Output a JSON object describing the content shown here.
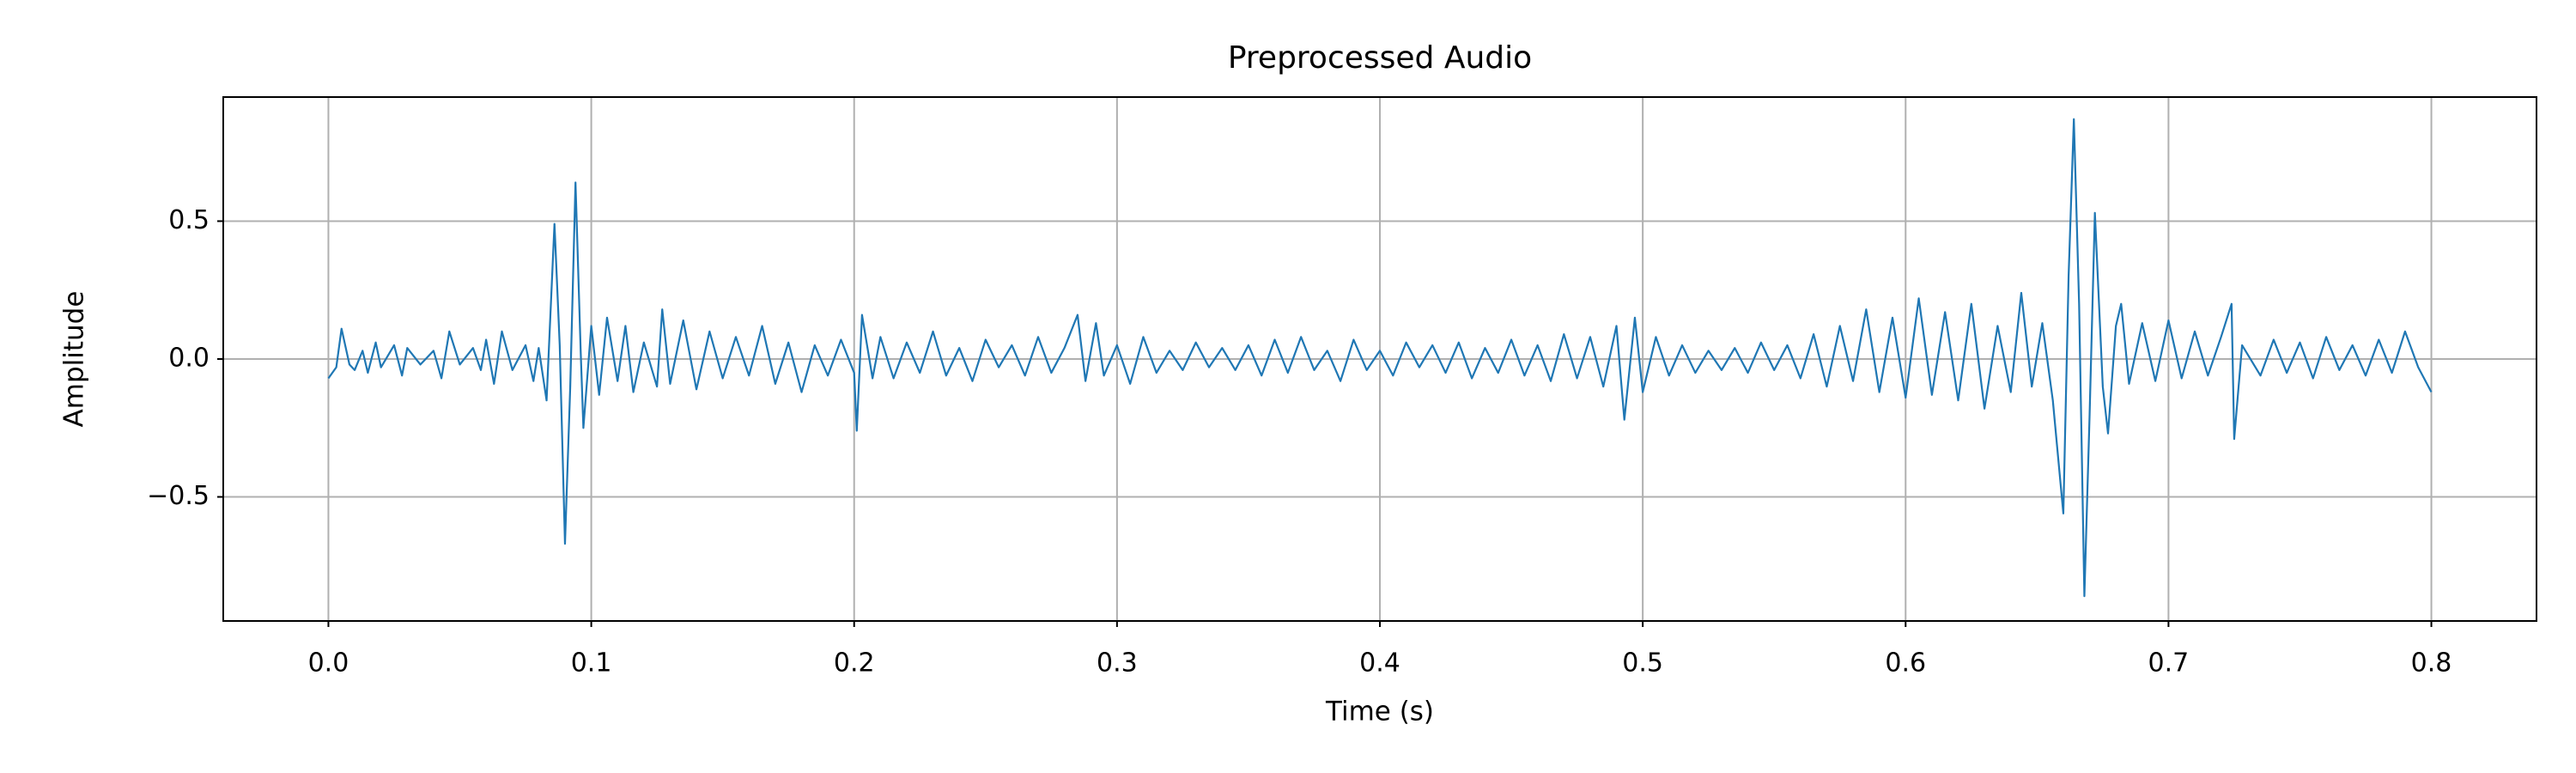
{
  "chart_data": {
    "type": "line",
    "title": "Preprocessed Audio",
    "xlabel": "Time (s)",
    "ylabel": "Amplitude",
    "color": "#1f77b4",
    "grid": true,
    "xlim": [
      -0.04,
      0.84
    ],
    "ylim": [
      -0.95,
      0.95
    ],
    "xticks": [
      {
        "value": 0,
        "label": "0.0"
      },
      0.1,
      0.2,
      0.3,
      0.4,
      0.5,
      0.6,
      0.7,
      0.8
    ],
    "yticks": [
      {
        "value": -0.5,
        "label": "−0.5"
      },
      {
        "value": 0,
        "label": "0.0"
      },
      0.5
    ],
    "x": [
      0.0,
      0.003,
      0.005,
      0.008,
      0.01,
      0.013,
      0.015,
      0.018,
      0.02,
      0.025,
      0.028,
      0.03,
      0.035,
      0.04,
      0.043,
      0.046,
      0.05,
      0.055,
      0.058,
      0.06,
      0.063,
      0.066,
      0.07,
      0.075,
      0.078,
      0.08,
      0.083,
      0.086,
      0.088,
      0.09,
      0.092,
      0.094,
      0.096,
      0.097,
      0.1,
      0.103,
      0.106,
      0.11,
      0.113,
      0.116,
      0.12,
      0.125,
      0.127,
      0.13,
      0.135,
      0.14,
      0.145,
      0.15,
      0.155,
      0.16,
      0.165,
      0.17,
      0.175,
      0.18,
      0.185,
      0.19,
      0.195,
      0.2,
      0.201,
      0.203,
      0.207,
      0.21,
      0.215,
      0.22,
      0.225,
      0.23,
      0.235,
      0.24,
      0.245,
      0.25,
      0.255,
      0.26,
      0.265,
      0.27,
      0.275,
      0.28,
      0.285,
      0.288,
      0.292,
      0.295,
      0.3,
      0.305,
      0.31,
      0.315,
      0.32,
      0.325,
      0.33,
      0.335,
      0.34,
      0.345,
      0.35,
      0.355,
      0.36,
      0.365,
      0.37,
      0.375,
      0.38,
      0.385,
      0.39,
      0.395,
      0.4,
      0.405,
      0.41,
      0.415,
      0.42,
      0.425,
      0.43,
      0.435,
      0.44,
      0.445,
      0.45,
      0.455,
      0.46,
      0.465,
      0.47,
      0.475,
      0.48,
      0.485,
      0.49,
      0.493,
      0.497,
      0.5,
      0.505,
      0.51,
      0.515,
      0.52,
      0.525,
      0.53,
      0.535,
      0.54,
      0.545,
      0.55,
      0.555,
      0.56,
      0.565,
      0.57,
      0.575,
      0.58,
      0.585,
      0.59,
      0.595,
      0.6,
      0.605,
      0.61,
      0.615,
      0.62,
      0.625,
      0.63,
      0.635,
      0.64,
      0.644,
      0.648,
      0.652,
      0.656,
      0.66,
      0.662,
      0.664,
      0.666,
      0.668,
      0.67,
      0.672,
      0.675,
      0.677,
      0.68,
      0.682,
      0.685,
      0.69,
      0.695,
      0.7,
      0.705,
      0.71,
      0.715,
      0.72,
      0.724,
      0.725,
      0.728,
      0.735,
      0.74,
      0.745,
      0.75,
      0.755,
      0.76,
      0.765,
      0.77,
      0.775,
      0.78,
      0.785,
      0.79,
      0.795,
      0.8
    ],
    "values": [
      -0.07,
      -0.03,
      0.11,
      -0.02,
      -0.04,
      0.03,
      -0.05,
      0.06,
      -0.03,
      0.05,
      -0.06,
      0.04,
      -0.02,
      0.03,
      -0.07,
      0.1,
      -0.02,
      0.04,
      -0.04,
      0.07,
      -0.09,
      0.1,
      -0.04,
      0.05,
      -0.08,
      0.04,
      -0.15,
      0.49,
      0.05,
      -0.67,
      -0.1,
      0.64,
      0.02,
      -0.25,
      0.12,
      -0.13,
      0.15,
      -0.08,
      0.12,
      -0.12,
      0.06,
      -0.1,
      0.18,
      -0.09,
      0.14,
      -0.11,
      0.1,
      -0.07,
      0.08,
      -0.06,
      0.12,
      -0.09,
      0.06,
      -0.12,
      0.05,
      -0.06,
      0.07,
      -0.05,
      -0.26,
      0.16,
      -0.07,
      0.08,
      -0.07,
      0.06,
      -0.05,
      0.1,
      -0.06,
      0.04,
      -0.08,
      0.07,
      -0.03,
      0.05,
      -0.06,
      0.08,
      -0.05,
      0.04,
      0.16,
      -0.08,
      0.13,
      -0.06,
      0.05,
      -0.09,
      0.08,
      -0.05,
      0.03,
      -0.04,
      0.06,
      -0.03,
      0.04,
      -0.04,
      0.05,
      -0.06,
      0.07,
      -0.05,
      0.08,
      -0.04,
      0.03,
      -0.08,
      0.07,
      -0.04,
      0.03,
      -0.06,
      0.06,
      -0.03,
      0.05,
      -0.05,
      0.06,
      -0.07,
      0.04,
      -0.05,
      0.07,
      -0.06,
      0.05,
      -0.08,
      0.09,
      -0.07,
      0.08,
      -0.1,
      0.12,
      -0.22,
      0.15,
      -0.12,
      0.08,
      -0.06,
      0.05,
      -0.05,
      0.03,
      -0.04,
      0.04,
      -0.05,
      0.06,
      -0.04,
      0.05,
      -0.07,
      0.09,
      -0.1,
      0.12,
      -0.08,
      0.18,
      -0.12,
      0.15,
      -0.14,
      0.22,
      -0.13,
      0.17,
      -0.15,
      0.2,
      -0.18,
      0.12,
      -0.12,
      0.24,
      -0.1,
      0.13,
      -0.15,
      -0.56,
      0.3,
      0.87,
      0.2,
      -0.86,
      -0.2,
      0.53,
      -0.1,
      -0.27,
      0.12,
      0.2,
      -0.09,
      0.13,
      -0.08,
      0.14,
      -0.07,
      0.1,
      -0.06,
      0.08,
      0.2,
      -0.29,
      0.05,
      -0.06,
      0.07,
      -0.05,
      0.06,
      -0.07,
      0.08,
      -0.04,
      0.05,
      -0.06,
      0.07,
      -0.05,
      0.1,
      -0.03,
      -0.12
    ]
  }
}
